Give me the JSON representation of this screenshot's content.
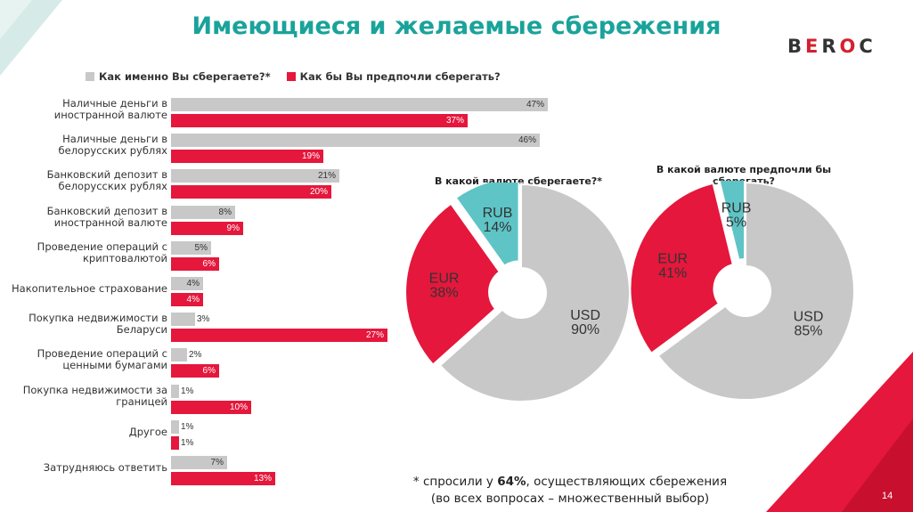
{
  "title": "Имеющиеся и желаемые сбережения",
  "logo": {
    "letters": [
      "B",
      "E",
      "R",
      "O",
      "C"
    ]
  },
  "legend": {
    "current": "Как именно Вы сберегаете?*",
    "preferred": "Как бы Вы предпочли сберегать?"
  },
  "colors": {
    "current": "#c8c8c8",
    "preferred": "#e5173c",
    "teal": "#5ec4c6",
    "accent": "#1aa39a"
  },
  "chart_data": [
    {
      "type": "bar",
      "categories": [
        "Наличные деньги в\nиностранной валюте",
        "Наличные деньги в\nбелорусских рублях",
        "Банковский депозит в\nбелорусских рублях",
        "Банковский депозит в\nиностранной валюте",
        "Проведение операций с\nкриптовалютой",
        "Накопительное страхование",
        "Покупка недвижимости в\nБеларуси",
        "Проведение операций с\nценными бумагами",
        "Покупка недвижимости за\nграницей",
        "Другое",
        "Затрудняюсь ответить"
      ],
      "series": [
        {
          "name": "Как именно Вы сберегаете?*",
          "values": [
            47,
            46,
            21,
            8,
            5,
            4,
            3,
            2,
            1,
            1,
            7
          ]
        },
        {
          "name": "Как бы Вы предпочли сберегать?",
          "values": [
            37,
            19,
            20,
            9,
            6,
            4,
            27,
            6,
            10,
            1,
            13
          ]
        }
      ],
      "value_suffix": "%"
    },
    {
      "type": "pie",
      "title": "В какой валюте сберегаете?*",
      "slices": [
        {
          "label": "USD",
          "value": 90
        },
        {
          "label": "EUR",
          "value": 38
        },
        {
          "label": "RUB",
          "value": 14
        }
      ]
    },
    {
      "type": "pie",
      "title": "В какой валюте предпочли бы\nсберегать?",
      "slices": [
        {
          "label": "USD",
          "value": 85
        },
        {
          "label": "EUR",
          "value": 41
        },
        {
          "label": "RUB",
          "value": 5
        }
      ]
    }
  ],
  "footnote": {
    "prefix": "* спросили у ",
    "bold": "64%",
    "suffix": ", осуществляющих сбережения",
    "line2": "(во всех вопросах – множественный выбор)"
  },
  "page_number": "14"
}
